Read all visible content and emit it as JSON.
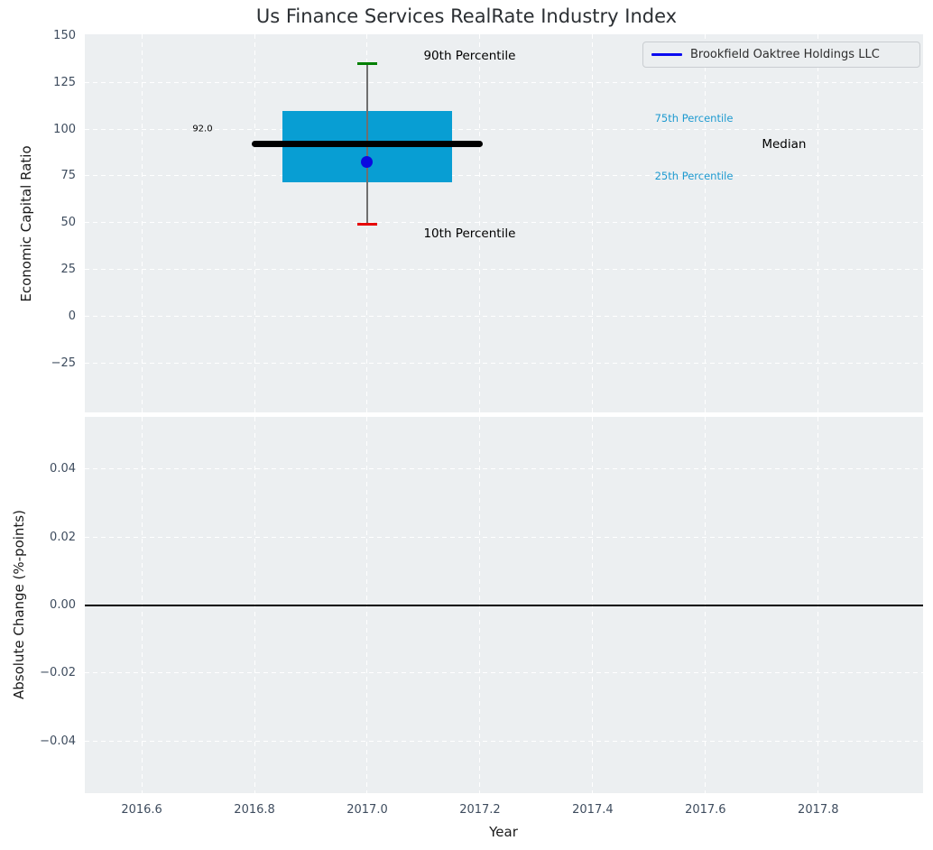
{
  "title": "Us Finance Services RealRate Industry Index",
  "legend": {
    "label": "Brookfield Oaktree Holdings LLC",
    "line_color": "#0b0bf0"
  },
  "colors": {
    "axes_background": "#eceff1",
    "grid": "#ffffff",
    "tick_label": "#3e4c5e",
    "box_fill": "#089ed3",
    "median_line": "#000000",
    "p90_cap": "#008000",
    "p10_cap": "#e60000",
    "whisker_line": "#6f6f6f",
    "company_point": "#0a0ae0",
    "percentile_text": "#1e9ad0",
    "zero_line": "#000000"
  },
  "xlabel": "Year",
  "xticks": {
    "values": [
      2016.6,
      2016.8,
      2017.0,
      2017.2,
      2017.4,
      2017.6,
      2017.8
    ],
    "labels": [
      "2016.6",
      "2016.8",
      "2017.0",
      "2017.2",
      "2017.4",
      "2017.6",
      "2017.8"
    ]
  },
  "chart_data": [
    {
      "type": "box",
      "title": "Us Finance Services RealRate Industry Index",
      "ylabel": "Economic Capital Ratio",
      "xlim": [
        2016.5,
        2017.99
      ],
      "ylim": [
        -51,
        151
      ],
      "grid": true,
      "yticks": {
        "values": [
          150,
          125,
          100,
          75,
          50,
          25,
          0,
          -25
        ],
        "labels": [
          "150",
          "125",
          "100",
          "75",
          "50",
          "25",
          "0",
          "−25"
        ]
      },
      "box": {
        "x_center": 2017.0,
        "p90": 135,
        "p75": 109.5,
        "median": 92.0,
        "p25": 71.5,
        "p10": 49,
        "median_label": "92.0",
        "x_left": 2016.85,
        "x_right": 2017.15,
        "median_x_left": 2016.795,
        "median_x_right": 2017.205,
        "cap_half_width": 0.017
      },
      "company_point": {
        "name": "Brookfield Oaktree Holdings LLC",
        "x": 2017.0,
        "y": 82.5
      },
      "annotations": [
        {
          "text": "90th Percentile",
          "x": 2017.1,
          "y": 139,
          "color": "#000000",
          "size": 13.5
        },
        {
          "text": "75th Percentile",
          "x": 2017.51,
          "y": 106,
          "color": "#1e9ad0",
          "size": 11.5
        },
        {
          "text": "Median",
          "x": 2017.7,
          "y": 92,
          "color": "#000000",
          "size": 13.5
        },
        {
          "text": "25th Percentile",
          "x": 2017.51,
          "y": 75,
          "color": "#1e9ad0",
          "size": 11.5
        },
        {
          "text": "10th Percentile",
          "x": 2017.1,
          "y": 44,
          "color": "#000000",
          "size": 13.5
        },
        {
          "text": "92.0",
          "x": 2016.69,
          "y": 100,
          "color": "#000000",
          "size": 10
        }
      ],
      "legend_position": "upper right"
    },
    {
      "type": "line",
      "ylabel": "Absolute Change (%-points)",
      "xlabel": "Year",
      "ylim": [
        -0.055,
        0.055
      ],
      "grid": true,
      "yticks": {
        "values": [
          0.04,
          0.02,
          0,
          -0.02,
          -0.04
        ],
        "labels": [
          "0.04",
          "0.02",
          "0.00",
          "−0.02",
          "−0.04"
        ]
      },
      "zero_line_y": 0.0,
      "series": []
    }
  ]
}
